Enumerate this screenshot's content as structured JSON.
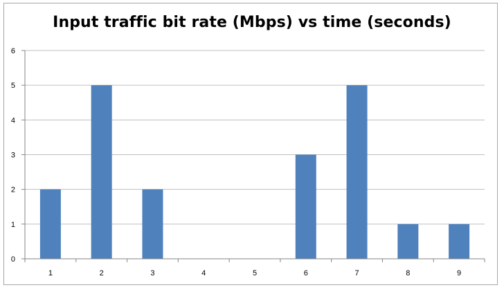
{
  "chart_data": {
    "type": "bar",
    "title": "Input traffic bit rate (Mbps) vs time (seconds)",
    "xlabel": "",
    "ylabel": "",
    "categories": [
      "1",
      "2",
      "3",
      "4",
      "5",
      "6",
      "7",
      "8",
      "9"
    ],
    "values": [
      2,
      5,
      2,
      0,
      0,
      3,
      5,
      1,
      1
    ],
    "ylim": [
      0,
      6
    ],
    "yticks": [
      "0",
      "1",
      "2",
      "3",
      "4",
      "5",
      "6"
    ],
    "grid": true,
    "legend": "none",
    "colors": {
      "bar": "#4f81bd",
      "grid": "#bfbfbf",
      "axis": "#868686"
    }
  }
}
